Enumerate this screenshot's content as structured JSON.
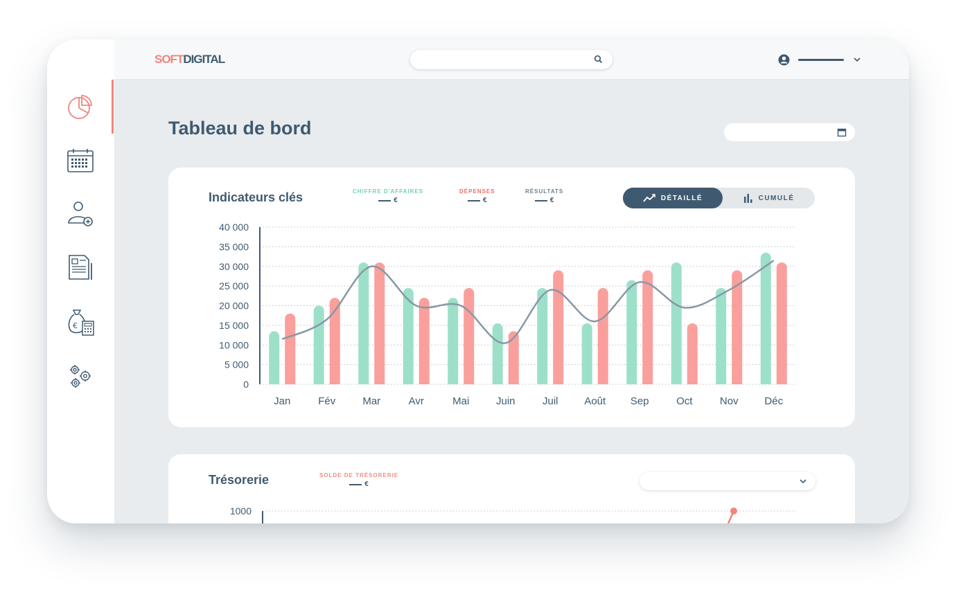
{
  "brand": {
    "soft": "SOFT",
    "digital": "DIGITAL"
  },
  "search": {
    "placeholder": "",
    "value": ""
  },
  "user": {
    "name": ""
  },
  "page": {
    "title": "Tableau de bord",
    "date_value": ""
  },
  "sidebar": {
    "items": [
      {
        "icon": "pie-chart-icon",
        "active": true
      },
      {
        "icon": "calendar-icon"
      },
      {
        "icon": "add-user-icon"
      },
      {
        "icon": "invoice-icon"
      },
      {
        "icon": "money-bag-calculator-icon"
      },
      {
        "icon": "gears-icon"
      }
    ]
  },
  "colors": {
    "accent": "#f2837d",
    "primary": "#3f5a70",
    "green": "#9de0c9",
    "red": "#fa9f9c",
    "line": "#8798a6"
  },
  "kpi_card": {
    "title": "Indicateurs clés",
    "legend": {
      "ca": {
        "label": "CHIFFRE D'AFFAIRES",
        "value": "€"
      },
      "dep": {
        "label": "DÉPENSES",
        "value": "€"
      },
      "res": {
        "label": "RÉSULTATS",
        "value": "€"
      }
    },
    "toggle": {
      "detail": "DÉTAILLÉ",
      "cumul": "CUMULÉ",
      "active": "detail"
    }
  },
  "treso_card": {
    "title": "Trésorerie",
    "legend": {
      "label": "SOLDE DE TRÉSORERIE",
      "value": "€"
    },
    "select_value": ""
  },
  "chart_data": [
    {
      "type": "bar",
      "categories": [
        "Jan",
        "Fév",
        "Mar",
        "Avr",
        "Mai",
        "Juin",
        "Juil",
        "Août",
        "Sep",
        "Oct",
        "Nov",
        "Déc"
      ],
      "series": [
        {
          "name": "CHIFFRE D'AFFAIRES",
          "type": "bar",
          "color": "#9de0c9",
          "values": [
            13500,
            20000,
            31000,
            24500,
            22000,
            15500,
            24500,
            15500,
            26500,
            31000,
            24500,
            33500
          ]
        },
        {
          "name": "DÉPENSES",
          "type": "bar",
          "color": "#fa9f9c",
          "values": [
            18000,
            22000,
            31000,
            22000,
            24500,
            13500,
            29000,
            24500,
            29000,
            15500,
            29000,
            31000
          ]
        },
        {
          "name": "RÉSULTATS",
          "type": "line",
          "color": "#8798a6",
          "values": [
            11500,
            16500,
            30000,
            20000,
            20000,
            10500,
            24000,
            16000,
            26000,
            19500,
            24000,
            31500
          ]
        }
      ],
      "yticks": [
        "40 000",
        "35 000",
        "30 000",
        "25 000",
        "20 000",
        "15 000",
        "10 000",
        "5 000",
        "0"
      ],
      "ylim": [
        0,
        40000
      ],
      "grid": true
    },
    {
      "type": "line",
      "series": [
        {
          "name": "SOLDE DE TRÉSORERIE",
          "color": "#f2837d",
          "values": [
            1000
          ]
        }
      ],
      "yticks": [
        "1000"
      ],
      "grid": true
    }
  ]
}
